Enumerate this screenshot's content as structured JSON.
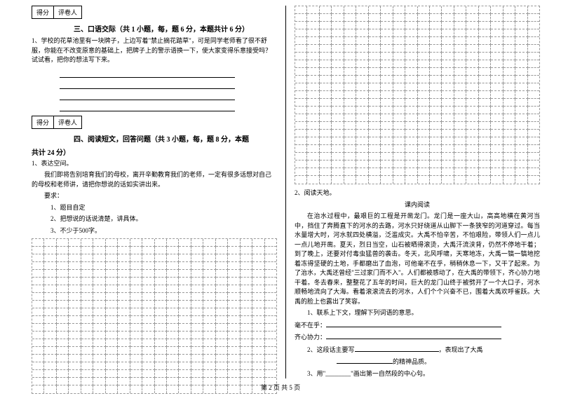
{
  "scorebox": {
    "c1": "得分",
    "c2": "评卷人"
  },
  "section3": {
    "title": "三、口语交际（共 1 小题，每，题 6 分，本题共计 6 分）",
    "q1": "1、学校的花草池里有一块牌子，上边写着\"禁止摘花踏草\"，可是同学老师看了很不舒服，你能在不改变原意的基础上，把牌子上的警示语换一下，使大家变得乐意接受吗？试试看，把你的想法写下来。"
  },
  "section4": {
    "title": "四、阅读短文，回答问题（共 3 小题，每，题 8 分，本题",
    "title_cont": "共计 24 分）",
    "q1_label": "1、表达空间。",
    "q1_intro": "我们即将告别培育我们的母校，离开辛勤教育我们的老师，一定有很多话想对自己的母校和老师讲，请把你想说的话如实讲出来。",
    "req_label": "要求：",
    "req1": "1、题目自定",
    "req2": "2、把想说的话说清楚，讲具体。",
    "req3": "3、不少于500字。"
  },
  "reading": {
    "q2_label": "2、阅读天地。",
    "subtitle": "课内阅读",
    "passage": "在治水过程中，最艰巨的工程是开凿龙门。龙门是一座大山，高高地横在黄河当中，挡住了奔腾直下的河水的去路，河水只好绕道从山脚下一条狭窄的河道穿过。每当水量增大时，河水就四处横溢，泛滥成灾。大禹不怕辛苦，不怕艰险，带领人们一点儿一点儿地开凿。夏天，烈日当空，山石被晒得滚烫，大禹汗流浃背，仍然不停地干着；到了晚上，还要对付毒虫猛兽的袭击。冬天，北风呼啸，天寒地冻，大禹一镐一镐地挖着冻得坚硬的土地，手都磨出了血泡，可他毫不在乎，稍稍休息一下，又干了起来。为了治水，大禹还曾经\"三过家门而不入\"。人们都被感动了，在大禹的带领下，齐心协力地干着。冬去春来，整整花了五年的时间，巨大的龙门山终于被劈开了一个大口子，河水顺畅地流向了大海。看着滚滚流去的河水，人们个个兴奋不已，围着大禹欢呼雀跃。大禹的脸上也露出了笑容。",
    "sub_q1": "1、联系上下文，理解下列词语的意思。",
    "word1": "毫不在乎：",
    "word2": "齐心协力：",
    "sub_q2_a": "2、这段话主要写",
    "sub_q2_b": "，表现出了大禹",
    "sub_q2_c": "的精神品质。",
    "sub_q3": "3、用\"________\"画出第一自然段的中心句。"
  },
  "footer": "第 2 页 共 5 页"
}
